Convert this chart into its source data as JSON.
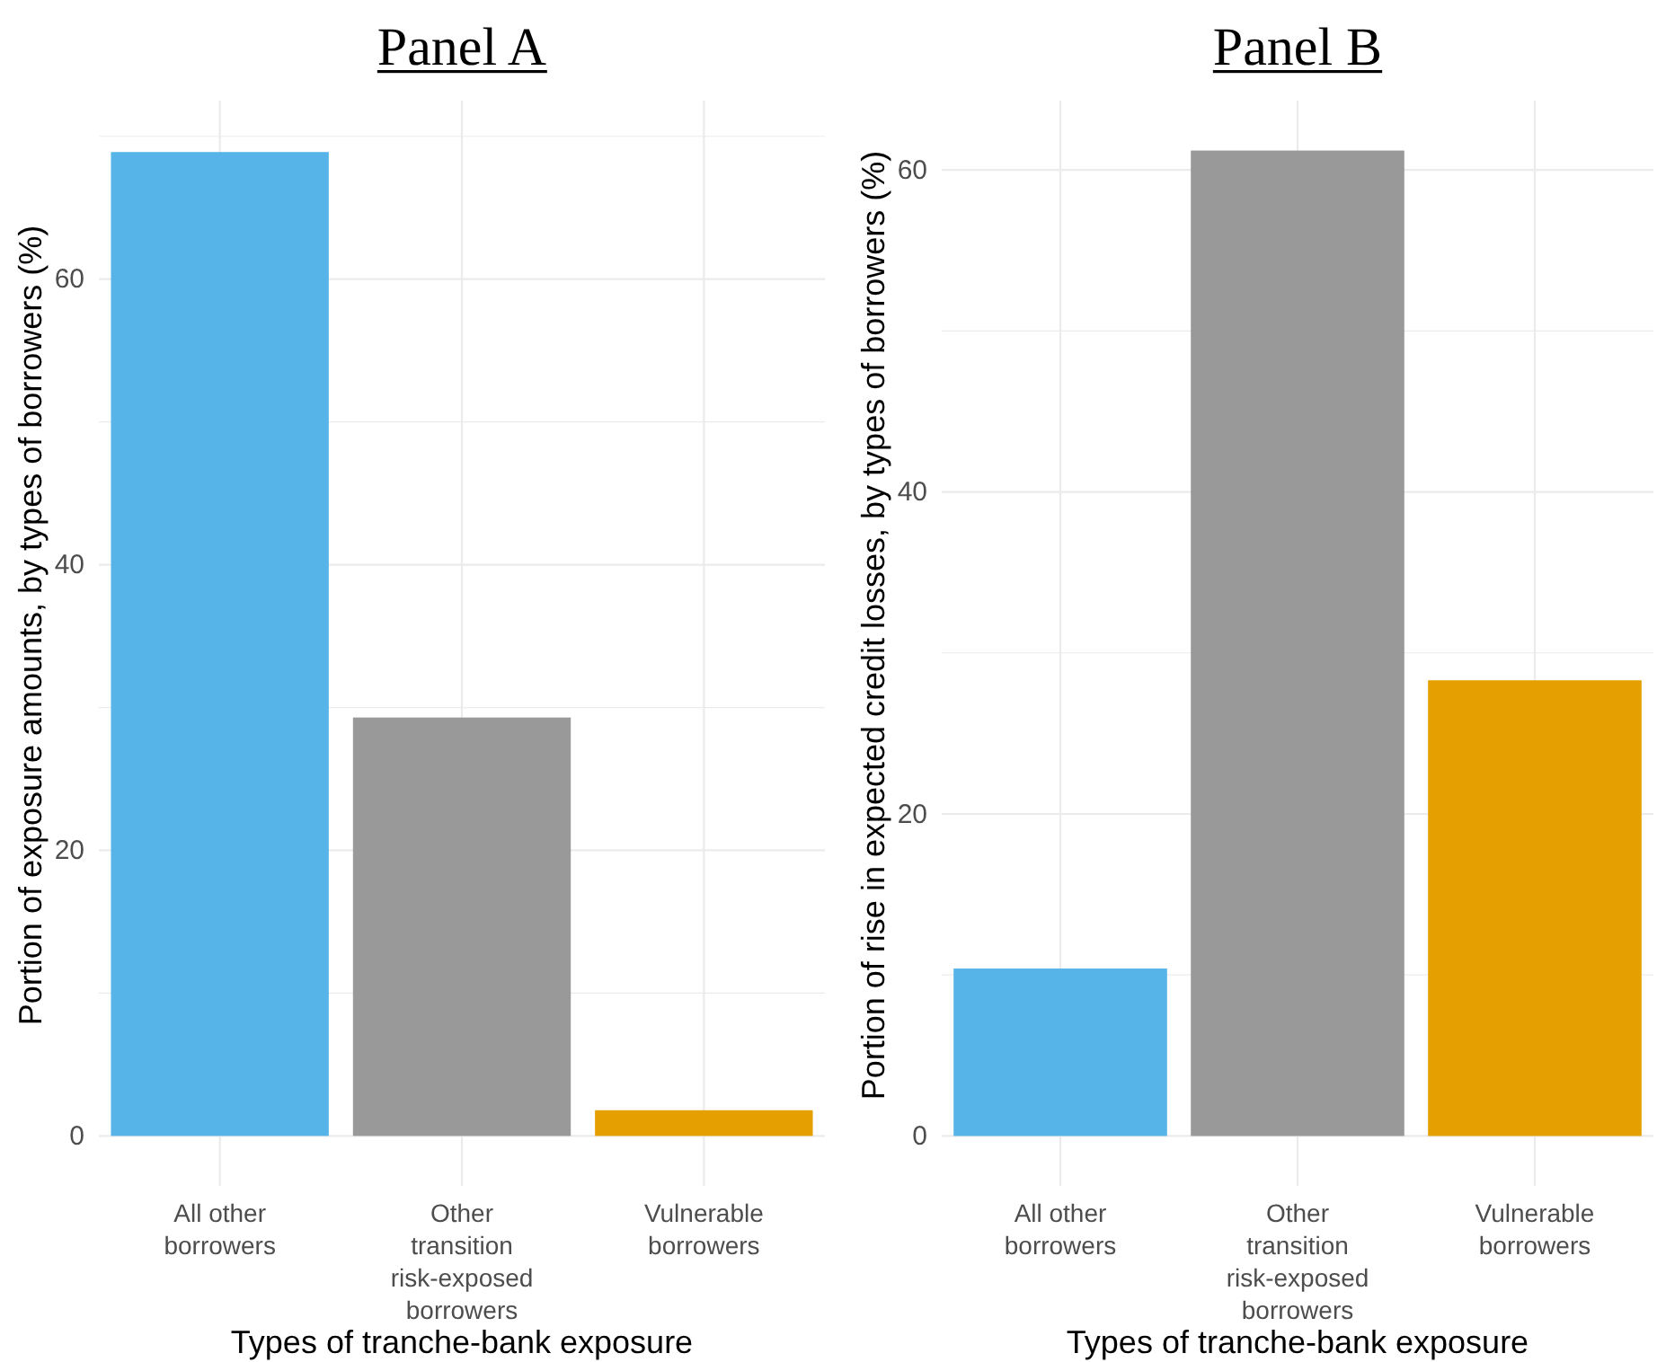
{
  "chart_data": [
    {
      "type": "bar",
      "title": "Panel A",
      "ylabel": "Portion of exposure amounts, by types of borrowers (%)",
      "xlabel": "Types of tranche-bank exposure",
      "categories": [
        "All other\nborrowers",
        "Other\ntransition\nrisk-exposed\nborrowers",
        "Vulnerable\nborrowers"
      ],
      "values": [
        68.9,
        29.3,
        1.8
      ],
      "colors": [
        "#56b4e9",
        "#999999",
        "#e69f00"
      ],
      "ylim": [
        -3.5,
        72.5
      ],
      "yticks": [
        0,
        {
          "value": 10,
          "label": null
        },
        20,
        {
          "value": 30,
          "label": null
        },
        40,
        {
          "value": 50,
          "label": null
        },
        60,
        {
          "value": 70,
          "label": null
        }
      ],
      "grid": true
    },
    {
      "type": "bar",
      "title": "Panel B",
      "ylabel": "Portion of rise in expected credit losses, by types of borrowers (%)",
      "xlabel": "Types of tranche-bank exposure",
      "categories": [
        "All other\nborrowers",
        "Other\ntransition\nrisk-exposed\nborrowers",
        "Vulnerable\nborrowers"
      ],
      "values": [
        10.4,
        61.2,
        28.3
      ],
      "colors": [
        "#56b4e9",
        "#999999",
        "#e69f00"
      ],
      "ylim": [
        -3.1,
        64.3
      ],
      "yticks": [
        0,
        {
          "value": 10,
          "label": null
        },
        20,
        {
          "value": 30,
          "label": null
        },
        40,
        {
          "value": 50,
          "label": null
        },
        60
      ],
      "grid": true
    }
  ]
}
